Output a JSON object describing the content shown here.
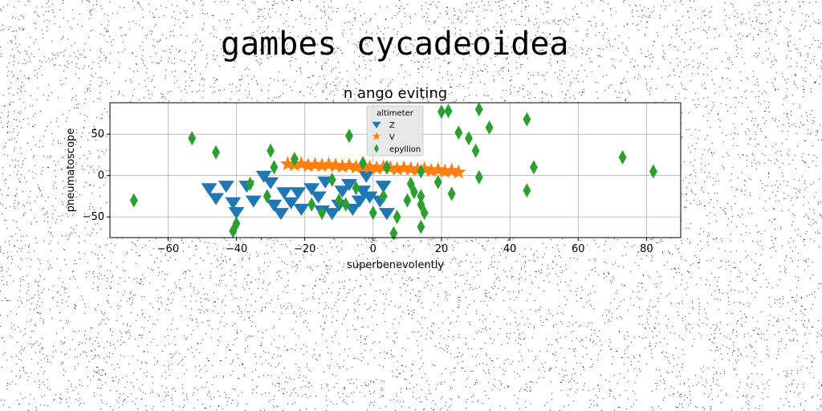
{
  "page": {
    "heading": "gambes cycadeoidea"
  },
  "chart_data": {
    "type": "scatter",
    "title": "n ango eviting",
    "xlabel": "superbenevolently",
    "ylabel": "pneumatoscope",
    "xlim": [
      -77,
      90
    ],
    "ylim": [
      -75,
      88
    ],
    "xticks": [
      -60,
      -40,
      -20,
      0,
      20,
      40,
      60,
      80
    ],
    "yticks": [
      -50,
      0,
      50
    ],
    "grid": true,
    "legend": {
      "title": "altimeter",
      "placement": "top-center"
    },
    "series": [
      {
        "name": "Z",
        "marker": "triangle-down",
        "color": "#1f77b4",
        "points": [
          [
            -48,
            -15
          ],
          [
            -46,
            -27
          ],
          [
            -43,
            -12
          ],
          [
            -41,
            -32
          ],
          [
            -40,
            -44
          ],
          [
            -37,
            -12
          ],
          [
            -35,
            -30
          ],
          [
            -32,
            0
          ],
          [
            -30,
            -8
          ],
          [
            -29,
            -35
          ],
          [
            -27,
            -45
          ],
          [
            -26,
            -20
          ],
          [
            -24,
            -32
          ],
          [
            -22,
            -20
          ],
          [
            -21,
            -40
          ],
          [
            -18,
            -15
          ],
          [
            -16,
            -25
          ],
          [
            -15,
            -42
          ],
          [
            -14,
            -7
          ],
          [
            -12,
            -45
          ],
          [
            -10,
            -35
          ],
          [
            -9,
            -18
          ],
          [
            -7,
            -10
          ],
          [
            -6,
            -40
          ],
          [
            -4,
            -30
          ],
          [
            -3,
            -18
          ],
          [
            -2,
            0
          ],
          [
            -1,
            -25
          ],
          [
            2,
            -30
          ],
          [
            3,
            -12
          ],
          [
            4,
            -45
          ]
        ]
      },
      {
        "name": "V",
        "marker": "star",
        "color": "#ff7f0e",
        "points": [
          [
            -25,
            14
          ],
          [
            -23,
            13
          ],
          [
            -21,
            14
          ],
          [
            -19,
            12
          ],
          [
            -17,
            13
          ],
          [
            -15,
            12
          ],
          [
            -13,
            13
          ],
          [
            -11,
            12
          ],
          [
            -9,
            11
          ],
          [
            -7,
            12
          ],
          [
            -5,
            10
          ],
          [
            -3,
            11
          ],
          [
            -1,
            10
          ],
          [
            1,
            9
          ],
          [
            3,
            10
          ],
          [
            5,
            9
          ],
          [
            7,
            8
          ],
          [
            9,
            9
          ],
          [
            11,
            8
          ],
          [
            13,
            7
          ],
          [
            15,
            8
          ],
          [
            17,
            6
          ],
          [
            19,
            7
          ],
          [
            21,
            5
          ],
          [
            23,
            6
          ],
          [
            25,
            4
          ]
        ]
      },
      {
        "name": "epyllion",
        "marker": "diamond",
        "color": "#2ca02c",
        "points": [
          [
            -70,
            -30
          ],
          [
            -53,
            45
          ],
          [
            -46,
            28
          ],
          [
            -41,
            -67
          ],
          [
            -40,
            -58
          ],
          [
            -36,
            -10
          ],
          [
            -31,
            -25
          ],
          [
            -30,
            30
          ],
          [
            -29,
            10
          ],
          [
            -23,
            20
          ],
          [
            -18,
            -35
          ],
          [
            -15,
            -45
          ],
          [
            -12,
            -5
          ],
          [
            -10,
            -30
          ],
          [
            -8,
            -35
          ],
          [
            -7,
            48
          ],
          [
            -5,
            -15
          ],
          [
            -3,
            15
          ],
          [
            0,
            -45
          ],
          [
            3,
            -25
          ],
          [
            4,
            10
          ],
          [
            6,
            -70
          ],
          [
            7,
            -50
          ],
          [
            10,
            -30
          ],
          [
            11,
            -10
          ],
          [
            12,
            -20
          ],
          [
            14,
            5
          ],
          [
            14,
            -25
          ],
          [
            14,
            -35
          ],
          [
            14,
            -62
          ],
          [
            15,
            -45
          ],
          [
            19,
            -8
          ],
          [
            20,
            77
          ],
          [
            22,
            78
          ],
          [
            23,
            -22
          ],
          [
            25,
            52
          ],
          [
            28,
            45
          ],
          [
            30,
            30
          ],
          [
            31,
            -2
          ],
          [
            31,
            80
          ],
          [
            34,
            58
          ],
          [
            45,
            -18
          ],
          [
            45,
            68
          ],
          [
            47,
            10
          ],
          [
            73,
            22
          ],
          [
            82,
            5
          ]
        ]
      }
    ]
  }
}
